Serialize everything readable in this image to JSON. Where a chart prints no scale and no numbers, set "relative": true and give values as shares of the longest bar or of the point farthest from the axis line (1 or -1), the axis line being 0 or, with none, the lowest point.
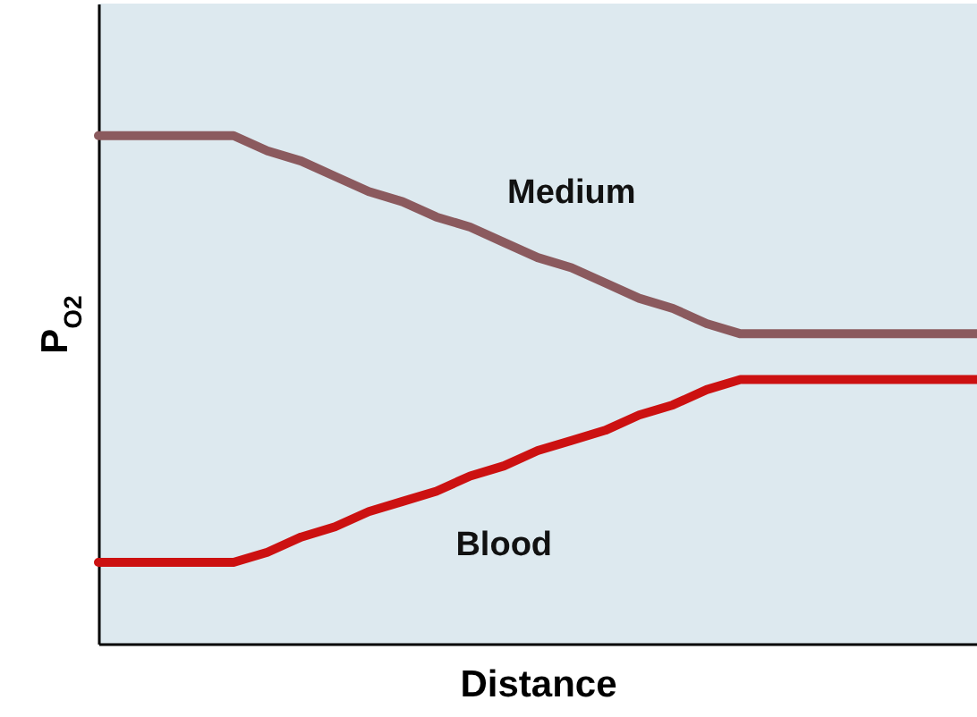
{
  "chart_data": {
    "type": "line",
    "relative": true,
    "xlabel": "Distance",
    "ylabel": "P$_{O2}$",
    "grid": false,
    "categories": [
      null,
      null,
      null,
      null,
      null,
      null,
      null,
      null,
      null,
      null,
      null,
      null,
      null,
      null,
      null,
      null,
      null,
      null,
      null,
      null,
      null,
      null,
      null,
      null,
      null,
      null,
      null
    ],
    "series": [
      {
        "name": "Medium",
        "color": "#8b5a5e",
        "values": [
          1,
          1,
          1,
          1,
          1,
          0.97,
          0.95,
          0.92,
          0.89,
          0.87,
          0.84,
          0.82,
          0.79,
          0.76,
          0.74,
          0.71,
          0.68,
          0.66,
          0.63,
          0.61,
          0.61,
          0.61,
          0.61,
          0.61,
          0.61,
          0.61,
          0.61
        ]
      },
      {
        "name": "Blood",
        "color": "#cc1111",
        "values": [
          0.16,
          0.16,
          0.16,
          0.16,
          0.16,
          0.18,
          0.21,
          0.23,
          0.26,
          0.28,
          0.3,
          0.33,
          0.35,
          0.38,
          0.4,
          0.42,
          0.45,
          0.47,
          0.5,
          0.52,
          0.52,
          0.52,
          0.52,
          0.52,
          0.52,
          0.52,
          0.52
        ]
      }
    ]
  }
}
